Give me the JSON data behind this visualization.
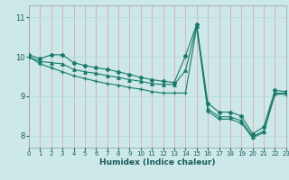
{
  "xlabel": "Humidex (Indice chaleur)",
  "background_color": "#cce8e8",
  "vgrid_color": "#ddaaaa",
  "hgrid_color": "#bbdddd",
  "line_color": "#1a7a6a",
  "xlim": [
    0,
    23
  ],
  "ylim": [
    7.7,
    11.3
  ],
  "yticks": [
    8,
    9,
    10,
    11
  ],
  "xticks": [
    0,
    1,
    2,
    3,
    4,
    5,
    6,
    7,
    8,
    9,
    10,
    11,
    12,
    13,
    14,
    15,
    16,
    17,
    18,
    19,
    20,
    21,
    22,
    23
  ],
  "lines": [
    {
      "x": [
        0,
        1,
        2,
        3,
        4,
        5,
        6,
        7,
        8,
        9,
        10,
        11,
        12,
        13,
        14,
        15,
        16,
        17,
        18,
        19,
        20,
        21,
        22,
        23
      ],
      "y": [
        10.05,
        9.95,
        10.05,
        10.05,
        9.85,
        9.78,
        9.72,
        9.68,
        9.62,
        9.55,
        9.48,
        9.42,
        9.38,
        9.35,
        10.02,
        10.82,
        8.82,
        8.6,
        8.6,
        8.5,
        8.05,
        8.22,
        9.15,
        9.12
      ],
      "marker": "D",
      "markersize": 2.2
    },
    {
      "x": [
        0,
        1,
        2,
        3,
        4,
        5,
        6,
        7,
        8,
        9,
        10,
        11,
        12,
        13,
        14,
        15,
        16,
        17,
        18,
        19,
        20,
        21,
        22,
        23
      ],
      "y": [
        10.0,
        9.88,
        9.85,
        9.82,
        9.68,
        9.62,
        9.58,
        9.52,
        9.48,
        9.42,
        9.38,
        9.32,
        9.3,
        9.3,
        9.65,
        10.78,
        8.68,
        8.48,
        8.48,
        8.38,
        7.98,
        8.12,
        9.08,
        9.08
      ],
      "marker": "^",
      "markersize": 2.5
    },
    {
      "x": [
        0,
        1,
        2,
        3,
        4,
        5,
        6,
        7,
        8,
        9,
        10,
        11,
        12,
        13,
        14,
        15,
        16,
        17,
        18,
        19,
        20,
        21,
        22,
        23
      ],
      "y": [
        10.0,
        9.82,
        9.72,
        9.62,
        9.52,
        9.45,
        9.38,
        9.32,
        9.28,
        9.22,
        9.18,
        9.12,
        9.08,
        9.08,
        9.08,
        10.75,
        8.62,
        8.42,
        8.42,
        8.32,
        7.95,
        8.08,
        9.05,
        9.05
      ],
      "marker": "+",
      "markersize": 3.5
    }
  ]
}
